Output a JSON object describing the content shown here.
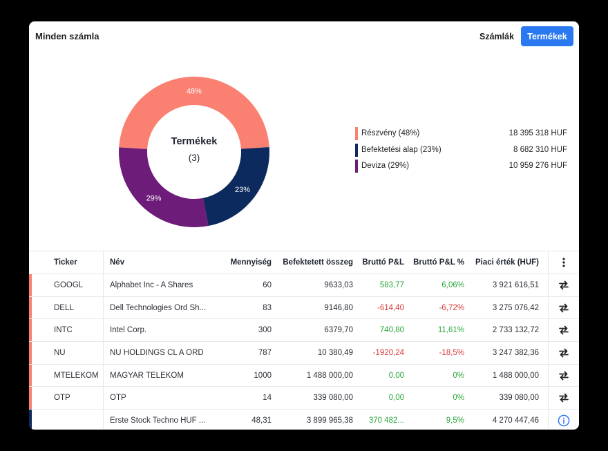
{
  "header": {
    "title": "Minden számla",
    "accounts_label": "Számlák",
    "products_label": "Termékek"
  },
  "donut": {
    "center_title": "Termékek",
    "center_count": "(3)"
  },
  "chart_data": {
    "type": "pie",
    "categories": [
      "Részvény",
      "Befektetési alap",
      "Deviza"
    ],
    "values": [
      48,
      23,
      29
    ],
    "value_labels": [
      "48%",
      "23%",
      "29%"
    ],
    "colors": [
      "#fa8072",
      "#0c2a5e",
      "#6e1c79"
    ]
  },
  "legend": [
    {
      "label": "Részvény (48%)",
      "value": "18 395 318 HUF",
      "color": "#fa8072"
    },
    {
      "label": "Befektetési alap (23%)",
      "value": "8 682 310 HUF",
      "color": "#0c2a5e"
    },
    {
      "label": "Deviza (29%)",
      "value": "10 959 276 HUF",
      "color": "#6e1c79"
    }
  ],
  "table": {
    "headers": [
      "Ticker",
      "Név",
      "Mennyiség",
      "Befektetett összeg",
      "Bruttó P&L",
      "Bruttó P&L %",
      "Piaci érték (HUF)"
    ],
    "more_icon": "more-vertical-icon",
    "rows": [
      {
        "ticker": "GOOGL",
        "name": "Alphabet Inc - A Shares",
        "qty": "60",
        "invested": "9633,03",
        "pl": "583,77",
        "plp": "6,06%",
        "mv": "3 921 616,51",
        "sign": "pos",
        "stripe": "#fa8072",
        "action": "transfer-icon"
      },
      {
        "ticker": "DELL",
        "name": "Dell Technologies Ord Sh...",
        "qty": "83",
        "invested": "9146,80",
        "pl": "-614,40",
        "plp": "-6,72%",
        "mv": "3 275 076,42",
        "sign": "neg",
        "stripe": "#fa8072",
        "action": "transfer-icon"
      },
      {
        "ticker": "INTC",
        "name": "Intel Corp.",
        "qty": "300",
        "invested": "6379,70",
        "pl": "740,80",
        "plp": "11,61%",
        "mv": "2 733 132,72",
        "sign": "pos",
        "stripe": "#fa8072",
        "action": "transfer-icon"
      },
      {
        "ticker": "NU",
        "name": "NU HOLDINGS CL A ORD",
        "qty": "787",
        "invested": "10 380,49",
        "pl": "-1920,24",
        "plp": "-18,5%",
        "mv": "3 247 382,36",
        "sign": "neg",
        "stripe": "#fa8072",
        "action": "transfer-icon"
      },
      {
        "ticker": "MTELEKOM",
        "name": "MAGYAR TELEKOM",
        "qty": "1000",
        "invested": "1 488 000,00",
        "pl": "0,00",
        "plp": "0%",
        "mv": "1 488 000,00",
        "sign": "zero",
        "stripe": "#fa8072",
        "action": "transfer-icon"
      },
      {
        "ticker": "OTP",
        "name": "OTP",
        "qty": "14",
        "invested": "339 080,00",
        "pl": "0,00",
        "plp": "0%",
        "mv": "339 080,00",
        "sign": "zero",
        "stripe": "#fa8072",
        "action": "transfer-icon"
      },
      {
        "ticker": "",
        "name": "Erste Stock Techno HUF ...",
        "qty": "48,31",
        "invested": "3 899 965,38",
        "pl": "370 482...",
        "plp": "9,5%",
        "mv": "4 270 447,46",
        "sign": "pos",
        "stripe": "#0c2a5e",
        "action": "info-icon"
      }
    ]
  }
}
